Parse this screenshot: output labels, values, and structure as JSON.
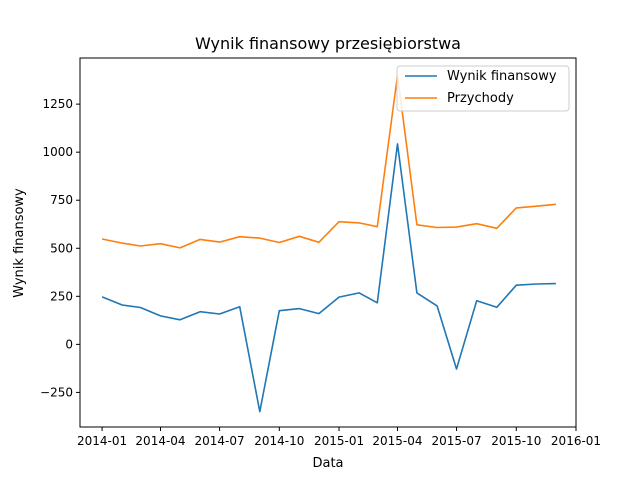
{
  "chart_data": {
    "type": "line",
    "title": "Wynik finansowy przesiębiorstwa",
    "xlabel": "Data",
    "ylabel": "Wynik finansowy",
    "x_axis_kind": "date",
    "xlim": [
      "2013-11-28",
      "2016-01-01"
    ],
    "ylim": [
      -430,
      1490
    ],
    "x_ticks": [
      {
        "date": "2014-01-01",
        "label": "2014-01"
      },
      {
        "date": "2014-04-01",
        "label": "2014-04"
      },
      {
        "date": "2014-07-01",
        "label": "2014-07"
      },
      {
        "date": "2014-10-01",
        "label": "2014-10"
      },
      {
        "date": "2015-01-01",
        "label": "2015-01"
      },
      {
        "date": "2015-04-01",
        "label": "2015-04"
      },
      {
        "date": "2015-07-01",
        "label": "2015-07"
      },
      {
        "date": "2015-10-01",
        "label": "2015-10"
      },
      {
        "date": "2016-01-01",
        "label": "2016-01"
      }
    ],
    "y_ticks": [
      {
        "value": -250,
        "label": "−250"
      },
      {
        "value": 0,
        "label": "0"
      },
      {
        "value": 250,
        "label": "250"
      },
      {
        "value": 500,
        "label": "500"
      },
      {
        "value": 750,
        "label": "750"
      },
      {
        "value": 1000,
        "label": "1000"
      },
      {
        "value": 1250,
        "label": "1250"
      }
    ],
    "grid": false,
    "legend_position": "top-right",
    "x": [
      "2014-01-01",
      "2014-02-01",
      "2014-03-01",
      "2014-04-01",
      "2014-05-01",
      "2014-06-01",
      "2014-07-01",
      "2014-08-01",
      "2014-09-01",
      "2014-10-01",
      "2014-11-01",
      "2014-12-01",
      "2015-01-01",
      "2015-02-01",
      "2015-03-01",
      "2015-04-01",
      "2015-05-01",
      "2015-06-01",
      "2015-07-01",
      "2015-08-01",
      "2015-09-01",
      "2015-10-01",
      "2015-11-01",
      "2015-12-01"
    ],
    "series": [
      {
        "name": "Wynik finansowy",
        "color": "#1f77b4",
        "values": [
          247,
          205,
          192,
          148,
          128,
          170,
          158,
          196,
          -350,
          175,
          186,
          160,
          246,
          268,
          216,
          1043,
          268,
          200,
          -128,
          227,
          193,
          308,
          314,
          316
        ]
      },
      {
        "name": "Przychody",
        "color": "#ff7f0e",
        "values": [
          548,
          527,
          512,
          524,
          502,
          546,
          532,
          560,
          553,
          530,
          562,
          531,
          638,
          632,
          612,
          1400,
          622,
          608,
          610,
          628,
          604,
          710,
          719,
          729
        ]
      }
    ]
  }
}
